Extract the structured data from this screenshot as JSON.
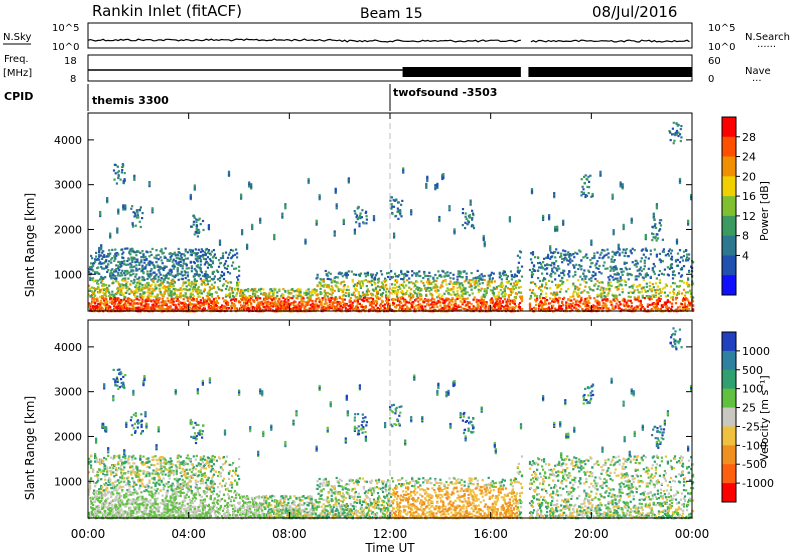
{
  "header": {
    "title": "Rankin Inlet (fitACF)",
    "beam": "Beam 15",
    "date": "08/Jul/2016"
  },
  "strips": {
    "nsky": {
      "label": "N.Sky",
      "ticks_left": [
        "10^5",
        "10^0"
      ],
      "ticks_right": [
        "10^5",
        "10^0"
      ],
      "right_label": "N.Search"
    },
    "freq": {
      "label_line1": "Freq.",
      "label_line2": "[MHz]",
      "ticks_left": [
        "18",
        "8"
      ],
      "ticks_right": [
        "60",
        "0"
      ],
      "right_label": "Nave"
    },
    "cpid": {
      "label": "CPID",
      "modes": [
        {
          "name": "themis 3300",
          "start_hour": 0
        },
        {
          "name": "twofsound -3503",
          "start_hour": 12.5
        }
      ]
    }
  },
  "time_axis": {
    "label": "Time UT",
    "ticks": [
      "00:00",
      "04:00",
      "08:00",
      "12:00",
      "16:00",
      "20:00",
      "00:00"
    ],
    "gap_hours": [
      17.2,
      17.5
    ]
  },
  "chart_data": [
    {
      "type": "heatmap",
      "ylabel": "Slant Range [km]",
      "yticks": [
        "1000",
        "2000",
        "3000",
        "4000"
      ],
      "ylim": [
        180,
        4600
      ],
      "xlim_hours": [
        0,
        24
      ],
      "colorbar": {
        "label": "Power [dB]",
        "tick_labels": [
          "4",
          "8",
          "12",
          "16",
          "20",
          "24",
          "28"
        ],
        "range": [
          0,
          30
        ],
        "colors": [
          "#1010ff",
          "#2050b0",
          "#2d7890",
          "#3a9a60",
          "#80c030",
          "#f0d000",
          "#f09000",
          "#ff5000",
          "#ff0000"
        ]
      }
    },
    {
      "type": "heatmap",
      "ylabel": "Slant Range [km]",
      "yticks": [
        "1000",
        "2000",
        "3000",
        "4000"
      ],
      "ylim": [
        180,
        4600
      ],
      "xlim_hours": [
        0,
        24
      ],
      "colorbar": {
        "label": "Velocity [m s⁻¹]",
        "tick_labels": [
          "1000",
          "500",
          "100",
          "25",
          "-25",
          "-100",
          "-500",
          "-1000"
        ],
        "colors": [
          "#2040c0",
          "#3080a0",
          "#30a070",
          "#60c040",
          "#c8c8c0",
          "#f0c040",
          "#f09020",
          "#ff6010",
          "#ff0000"
        ]
      }
    }
  ]
}
